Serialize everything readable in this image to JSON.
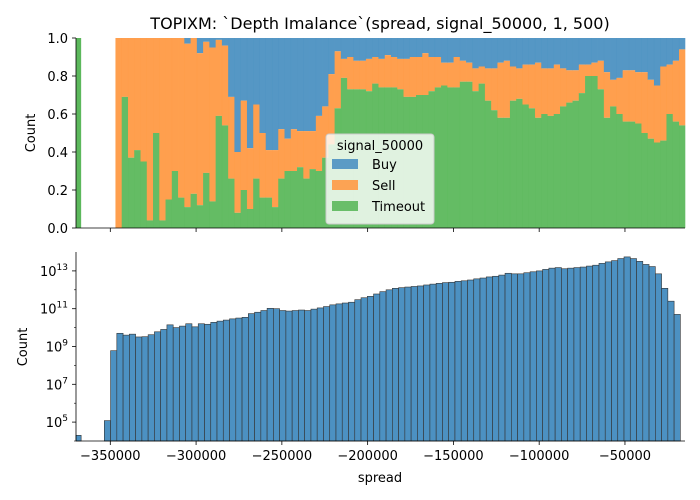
{
  "chart_data": [
    {
      "type": "area",
      "stacked_fraction": true,
      "title": "TOPIXM: `Depth Imalance`(spread, signal_50000, 1, 500)",
      "xlabel": "",
      "ylabel": "Count",
      "xlim": [
        -370000,
        -15000
      ],
      "ylim": [
        0,
        1
      ],
      "yticks": [
        "0.0",
        "0.2",
        "0.4",
        "0.6",
        "0.8",
        "1.0"
      ],
      "legend": {
        "title": "signal_50000",
        "placement": "center",
        "entries": [
          "Buy",
          "Sell",
          "Timeout"
        ]
      },
      "colors": {
        "Buy": "#4c91c2",
        "Sell": "#ff9a45",
        "Timeout": "#5cb85c"
      },
      "bin_start": -347000,
      "bin_width": 3650,
      "single_bin": {
        "x0": -370000,
        "x1": -367000,
        "timeout": 1.0,
        "sell": 0.0
      },
      "series": [
        {
          "name": "Timeout",
          "values": [
            0.0,
            0.69,
            0.37,
            0.41,
            0.35,
            0.04,
            0.5,
            0.04,
            0.15,
            0.3,
            0.16,
            0.11,
            0.18,
            0.12,
            0.29,
            0.14,
            0.59,
            0.54,
            0.26,
            0.08,
            0.2,
            0.1,
            0.26,
            0.16,
            0.16,
            0.11,
            0.26,
            0.3,
            0.3,
            0.32,
            0.26,
            0.31,
            0.3,
            0.37,
            0.44,
            0.63,
            0.79,
            0.73,
            0.73,
            0.73,
            0.72,
            0.76,
            0.74,
            0.74,
            0.74,
            0.73,
            0.69,
            0.69,
            0.7,
            0.7,
            0.72,
            0.74,
            0.75,
            0.74,
            0.74,
            0.77,
            0.77,
            0.72,
            0.76,
            0.67,
            0.62,
            0.58,
            0.58,
            0.67,
            0.68,
            0.65,
            0.63,
            0.58,
            0.6,
            0.59,
            0.6,
            0.64,
            0.66,
            0.67,
            0.71,
            0.8,
            0.8,
            0.73,
            0.58,
            0.64,
            0.6,
            0.56,
            0.56,
            0.55,
            0.5,
            0.47,
            0.45,
            0.46,
            0.6,
            0.56,
            0.54,
            0.5
          ]
        },
        {
          "name": "Sell",
          "values": [
            1.0,
            0.31,
            0.63,
            0.59,
            0.65,
            0.96,
            0.5,
            0.96,
            0.85,
            0.7,
            0.84,
            0.86,
            0.82,
            0.8,
            0.69,
            0.81,
            0.4,
            0.42,
            0.43,
            0.32,
            0.47,
            0.32,
            0.39,
            0.34,
            0.25,
            0.3,
            0.26,
            0.17,
            0.22,
            0.19,
            0.25,
            0.2,
            0.29,
            0.27,
            0.37,
            0.3,
            0.1,
            0.17,
            0.15,
            0.15,
            0.17,
            0.14,
            0.15,
            0.17,
            0.16,
            0.16,
            0.2,
            0.21,
            0.2,
            0.22,
            0.18,
            0.16,
            0.12,
            0.13,
            0.16,
            0.11,
            0.1,
            0.12,
            0.09,
            0.17,
            0.22,
            0.29,
            0.3,
            0.18,
            0.16,
            0.21,
            0.23,
            0.29,
            0.24,
            0.25,
            0.26,
            0.2,
            0.17,
            0.16,
            0.15,
            0.06,
            0.07,
            0.15,
            0.24,
            0.14,
            0.19,
            0.27,
            0.27,
            0.27,
            0.32,
            0.31,
            0.3,
            0.39,
            0.26,
            0.32,
            0.4,
            0.5
          ]
        }
      ]
    },
    {
      "type": "bar",
      "subtype": "histogram",
      "xlabel": "spread",
      "ylabel": "Count",
      "yscale": "log",
      "ylim": [
        10000,
        100000000000000.0
      ],
      "xlim": [
        -370000,
        -15000
      ],
      "xticks": [
        "−350000",
        "−300000",
        "−250000",
        "−200000",
        "−150000",
        "−100000",
        "−50000"
      ],
      "xtick_values": [
        -350000,
        -300000,
        -250000,
        -200000,
        -150000,
        -100000,
        -50000
      ],
      "yticks": [
        {
          "base": "10",
          "exp": "5",
          "value": 100000
        },
        {
          "base": "10",
          "exp": "7",
          "value": 10000000
        },
        {
          "base": "10",
          "exp": "9",
          "value": 1000000000
        },
        {
          "base": "10",
          "exp": "11",
          "value": 100000000000
        },
        {
          "base": "10",
          "exp": "13",
          "value": 10000000000000
        }
      ],
      "color": "#4c91c2",
      "bin_start": -353500,
      "bin_width": 3650,
      "single_bin": {
        "x0": -370000,
        "x1": -367000,
        "value": 20000
      },
      "values": [
        120000.0,
        600000000.0,
        5000000000.0,
        4000000000.0,
        4500000000.0,
        3200000000.0,
        3300000000.0,
        4200000000.0,
        6000000000.0,
        8000000000.0,
        14000000000.0,
        10000000000.0,
        12000000000.0,
        16000000000.0,
        11000000000.0,
        16000000000.0,
        15000000000.0,
        19000000000.0,
        22000000000.0,
        25000000000.0,
        29000000000.0,
        32000000000.0,
        35000000000.0,
        55000000000.0,
        65000000000.0,
        80000000000.0,
        105000000000.0,
        100000000000.0,
        80000000000.0,
        75000000000.0,
        80000000000.0,
        85000000000.0,
        80000000000.0,
        95000000000.0,
        110000000000.0,
        130000000000.0,
        160000000000.0,
        180000000000.0,
        200000000000.0,
        220000000000.0,
        300000000000.0,
        380000000000.0,
        450000000000.0,
        600000000000.0,
        800000000000.0,
        1000000000000.0,
        1200000000000.0,
        1300000000000.0,
        1400000000000.0,
        1500000000000.0,
        1600000000000.0,
        1800000000000.0,
        2000000000000.0,
        2200000000000.0,
        2400000000000.0,
        2500000000000.0,
        2800000000000.0,
        3000000000000.0,
        3300000000000.0,
        3800000000000.0,
        4200000000000.0,
        4800000000000.0,
        5200000000000.0,
        6000000000000.0,
        7500000000000.0,
        7000000000000.0,
        7000000000000.0,
        8000000000000.0,
        9000000000000.0,
        10000000000000.0,
        12000000000000.0,
        14000000000000.0,
        15000000000000.0,
        13000000000000.0,
        14000000000000.0,
        15000000000000.0,
        16000000000000.0,
        18000000000000.0,
        20000000000000.0,
        25000000000000.0,
        30000000000000.0,
        35000000000000.0,
        45000000000000.0,
        55000000000000.0,
        45000000000000.0,
        32000000000000.0,
        22000000000000.0,
        17000000000000.0,
        7000000000000.0,
        1200000000000.0,
        250000000000.0,
        50000000000.0
      ]
    }
  ]
}
